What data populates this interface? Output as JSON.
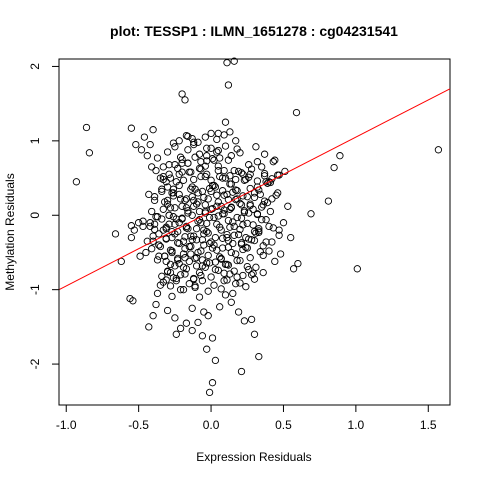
{
  "chart_data": {
    "type": "scatter",
    "title": "plot: TESSP1 : ILMN_1651278 : cg04231541",
    "xlabel": "Expression Residuals",
    "ylabel": "Methylation Residuals",
    "xlim": [
      -1.05,
      1.65
    ],
    "ylim": [
      -2.55,
      2.1
    ],
    "xticks": [
      -1.0,
      -0.5,
      0.0,
      0.5,
      1.0,
      1.5
    ],
    "xtick_labels": [
      "-1.0",
      "-0.5",
      "0.0",
      "0.5",
      "1.0",
      "1.5"
    ],
    "yticks": [
      -2,
      -1,
      0,
      1,
      2
    ],
    "ytick_labels": [
      "-2",
      "-1",
      "0",
      "1",
      "2"
    ],
    "grid": false,
    "marker": "open-circle",
    "fit_line": {
      "intercept": 0.05,
      "slope": 1.0,
      "color": "#ff0000"
    },
    "point_color": "#000000",
    "x": [
      -0.93,
      -0.86,
      -0.84,
      -0.55,
      -0.4,
      -0.33,
      -0.52,
      -0.48,
      -0.2,
      -0.18,
      0.11,
      0.16,
      0.12,
      0.1,
      0.05,
      0.59,
      1.57,
      0.89,
      0.85,
      0.81,
      0.69,
      0.6,
      0.57,
      0.55,
      0.5,
      1.01,
      0.53,
      0.4,
      0.44,
      0.37,
      0.32,
      0.27,
      0.2,
      0.16,
      0.3,
      0.36,
      -0.56,
      -0.54,
      -0.62,
      -0.66,
      -0.49,
      -0.5,
      -0.4,
      -0.43,
      -0.38,
      -0.37,
      -0.35,
      -0.31,
      -0.3,
      -0.25,
      -0.27,
      -0.21,
      -0.24,
      -0.21,
      -0.13,
      -0.11,
      -0.08,
      -0.03,
      0.03,
      -0.01,
      0.01,
      0.21,
      0.28,
      0.3,
      0.33,
      -0.06,
      -0.02,
      -0.09,
      -0.05,
      -0.13,
      -0.17,
      -0.24,
      -0.28,
      0.01,
      0.06,
      0.1,
      0.14,
      0.19,
      0.23,
      -0.42,
      -0.44,
      -0.46,
      -0.41,
      -0.37,
      -0.33,
      -0.29,
      -0.2,
      -0.16,
      -0.12,
      -0.07,
      -0.03,
      0.0,
      0.04,
      0.08,
      0.12,
      0.17,
      0.22,
      0.26,
      0.31,
      0.35,
      0.39,
      0.43,
      0.47,
      -0.35,
      -0.3,
      -0.27,
      -0.23,
      -0.19,
      -0.15,
      -0.11,
      -0.07,
      -0.04,
      0.02,
      0.06,
      0.09,
      0.13,
      0.18,
      0.24,
      0.27,
      0.34,
      0.38,
      0.42,
      0.46,
      -0.32,
      -0.28,
      -0.26,
      -0.22,
      -0.18,
      -0.14,
      -0.1,
      -0.06,
      -0.02,
      0.03,
      0.07,
      0.11,
      0.15,
      0.2,
      0.25,
      0.29,
      0.33,
      0.37,
      0.41,
      0.45,
      -0.29,
      -0.24,
      -0.2,
      -0.16,
      -0.12,
      -0.08,
      -0.04,
      0.0,
      0.05,
      0.09,
      0.14,
      0.18,
      0.23,
      0.27,
      0.32,
      -0.39,
      -0.34,
      -0.31,
      -0.26,
      -0.22,
      -0.17,
      -0.13,
      -0.09,
      -0.05,
      -0.01,
      0.04,
      0.08,
      0.12,
      0.16,
      0.21,
      0.25,
      0.3,
      0.35,
      -0.36,
      -0.31,
      -0.27,
      -0.23,
      -0.19,
      -0.14,
      -0.1,
      -0.06,
      -0.02,
      0.02,
      0.07,
      0.11,
      0.15,
      0.19,
      0.24,
      0.28,
      0.33,
      0.38,
      -0.45,
      -0.41,
      -0.36,
      -0.32,
      -0.28,
      -0.23,
      -0.19,
      -0.15,
      -0.11,
      -0.07,
      -0.03,
      0.01,
      0.06,
      0.1,
      0.14,
      0.18,
      0.22,
      0.27,
      0.31,
      0.36,
      0.4,
      0.44,
      0.48,
      -0.3,
      -0.25,
      -0.21,
      -0.17,
      -0.12,
      -0.08,
      -0.04,
      0.0,
      0.05,
      0.09,
      0.13,
      0.17,
      0.22,
      0.26,
      0.3,
      -0.38,
      -0.33,
      -0.29,
      -0.24,
      -0.2,
      -0.16,
      -0.12,
      -0.08,
      -0.03,
      0.01,
      0.05,
      0.1,
      0.14,
      0.19,
      0.23,
      0.28,
      0.32,
      0.37,
      0.41,
      -0.43,
      -0.39,
      -0.34,
      -0.3,
      -0.26,
      -0.21,
      -0.17,
      -0.13,
      -0.09,
      -0.04,
      0.0,
      0.04,
      0.09,
      0.13,
      0.17,
      0.21,
      0.26,
      0.3,
      0.35,
      0.39,
      -0.47,
      -0.42,
      -0.38,
      -0.33,
      -0.29,
      -0.25,
      -0.2,
      -0.16,
      -0.12,
      -0.07,
      -0.03,
      0.02,
      0.06,
      0.11,
      0.15,
      0.2,
      0.24,
      0.29,
      0.33,
      0.38,
      0.43,
      0.47,
      -0.4,
      -0.35,
      -0.31,
      -0.27,
      -0.22,
      -0.18,
      -0.13,
      -0.09,
      -0.05,
      0.0,
      0.04,
      0.08,
      0.12,
      0.17,
      0.21,
      0.25,
      0.3,
      0.34,
      -0.37,
      -0.32,
      -0.28,
      -0.23,
      -0.19,
      -0.15,
      -0.1,
      -0.06,
      -0.01,
      0.03,
      0.07,
      0.12,
      0.16,
      0.2,
      0.25,
      0.29,
      -0.33,
      -0.28,
      -0.24,
      -0.19,
      -0.15,
      -0.11,
      -0.06,
      -0.02,
      0.02,
      0.07,
      0.11,
      0.15,
      0.2,
      0.24,
      -0.3,
      -0.25,
      -0.21,
      -0.16,
      -0.12,
      -0.08,
      -0.03,
      0.01,
      0.05,
      0.1,
      0.14,
      0.18,
      -0.26,
      -0.22,
      -0.17,
      -0.13,
      -0.09,
      -0.04,
      0.0,
      0.04,
      0.09,
      0.13,
      -0.44,
      -0.4,
      -0.36,
      -0.31,
      -0.27,
      -0.23,
      -0.18,
      -0.14,
      -0.1,
      -0.05,
      -0.01,
      0.03,
      0.08,
      0.12,
      0.16,
      0.21,
      0.26,
      0.31,
      0.36,
      0.42,
      -0.41,
      -0.37,
      -0.33,
      -0.29,
      -0.25,
      -0.2,
      -0.16,
      -0.12,
      -0.08,
      -0.04,
      0.01,
      0.05,
      0.09,
      0.14,
      0.18,
      0.23,
      0.27,
      0.32,
      -0.39,
      -0.34,
      -0.3,
      -0.26,
      -0.22,
      -0.17,
      -0.13,
      -0.09,
      -0.05,
      -0.01,
      0.04,
      0.08,
      0.12,
      0.17,
      0.22,
      -0.36,
      -0.31,
      -0.27,
      -0.22,
      -0.18,
      -0.14,
      -0.1,
      -0.06,
      -0.02,
      0.03,
      0.07,
      0.11,
      -0.25,
      -0.2,
      -0.16,
      -0.11,
      -0.07,
      -0.03,
      0.02,
      0.06,
      -0.42,
      -0.47,
      -0.53,
      -0.55,
      -0.31,
      -0.28,
      -0.22,
      -0.14,
      -0.04,
      0.0,
      0.05,
      0.13,
      0.17,
      0.21,
      0.26,
      0.32,
      0.37,
      0.42,
      0.46,
      0.51,
      -0.34,
      -0.3,
      -0.26,
      -0.18,
      -0.12,
      -0.07,
      0.09,
      0.18,
      0.28,
      0.36,
      -0.55,
      -0.39,
      -0.25,
      -0.17,
      -0.03,
      0.13,
      0.22,
      0.33,
      0.4,
      0.47
    ],
    "y": [
      0.45,
      1.18,
      0.84,
      1.17,
      1.15,
      0.65,
      0.95,
      0.88,
      1.63,
      1.55,
      2.05,
      2.07,
      1.75,
      1.25,
      1.1,
      1.38,
      0.88,
      0.8,
      0.64,
      0.19,
      0.02,
      -0.65,
      -0.72,
      -0.3,
      -0.1,
      -0.72,
      0.12,
      0.45,
      0.74,
      0.82,
      0.72,
      0.55,
      0.84,
      0.6,
      0.3,
      0.14,
      -1.12,
      -1.15,
      -0.62,
      -0.25,
      -0.55,
      -0.1,
      -1.35,
      -1.5,
      -1.2,
      -1.05,
      -0.94,
      -0.87,
      -1.28,
      -1.38,
      -1.09,
      -1.52,
      -1.6,
      -1.0,
      -1.25,
      -0.95,
      -1.1,
      -1.8,
      -1.95,
      -2.38,
      -2.25,
      -2.1,
      -1.4,
      -1.6,
      -1.9,
      -1.62,
      -1.35,
      -1.44,
      -1.3,
      -1.55,
      -1.45,
      -0.88,
      -0.77,
      -1.65,
      -1.23,
      -1.07,
      -1.17,
      -1.3,
      -1.42,
      0.95,
      0.8,
      1.05,
      0.65,
      0.77,
      0.48,
      0.55,
      0.7,
      1.06,
      0.98,
      0.62,
      0.73,
      0.9,
      0.85,
      0.5,
      0.74,
      1.0,
      0.55,
      0.68,
      0.92,
      0.65,
      0.43,
      0.72,
      0.54,
      0.5,
      0.38,
      0.3,
      0.63,
      0.47,
      0.58,
      0.35,
      0.52,
      0.66,
      0.4,
      0.52,
      0.6,
      0.42,
      0.33,
      0.48,
      0.36,
      0.28,
      0.45,
      0.22,
      0.3,
      0.18,
      0.1,
      0.26,
      0.4,
      0.2,
      0.35,
      0.15,
      0.32,
      0.22,
      0.38,
      0.12,
      0.28,
      0.31,
      0.16,
      0.25,
      0.08,
      0.34,
      0.19,
      0.05,
      0.27,
      0.0,
      -0.05,
      0.12,
      0.03,
      0.2,
      0.05,
      0.14,
      0.08,
      0.18,
      0.02,
      0.1,
      0.22,
      0.06,
      0.15,
      0.01,
      -0.12,
      -0.05,
      -0.18,
      -0.02,
      -0.1,
      -0.15,
      0.0,
      -0.08,
      -0.2,
      -0.03,
      -0.12,
      0.02,
      -0.07,
      -0.15,
      -0.04,
      -0.11,
      -0.22,
      -0.06,
      -0.25,
      -0.16,
      -0.3,
      -0.22,
      -0.35,
      -0.28,
      -0.18,
      -0.33,
      -0.24,
      -0.4,
      -0.2,
      -0.3,
      -0.38,
      -0.26,
      -0.43,
      -0.33,
      -0.21,
      -0.36,
      -0.5,
      -0.45,
      -0.4,
      -0.55,
      -0.47,
      -0.6,
      -0.52,
      -0.42,
      -0.58,
      -0.48,
      -0.64,
      -0.44,
      -0.56,
      -0.66,
      -0.5,
      -0.61,
      -0.46,
      -0.57,
      -0.7,
      -0.54,
      -0.48,
      -0.62,
      -0.52,
      -0.75,
      -0.68,
      -0.8,
      -0.72,
      -0.85,
      -0.77,
      -0.7,
      -0.83,
      -0.74,
      -0.88,
      -0.79,
      -0.92,
      -0.81,
      -0.73,
      -0.86,
      0.6,
      0.52,
      0.68,
      0.45,
      0.58,
      0.7,
      0.48,
      0.63,
      0.55,
      0.4,
      0.66,
      0.5,
      0.42,
      0.59,
      0.47,
      0.62,
      0.38,
      0.53,
      0.44,
      0.28,
      0.2,
      0.35,
      0.15,
      0.3,
      0.22,
      0.1,
      0.25,
      0.18,
      0.05,
      0.32,
      0.12,
      0.27,
      0.08,
      0.21,
      0.14,
      0.03,
      0.24,
      0.11,
      0.17,
      -0.08,
      -0.15,
      -0.02,
      -0.2,
      -0.12,
      -0.25,
      -0.05,
      -0.18,
      -0.28,
      -0.1,
      -0.22,
      -0.03,
      -0.16,
      -0.26,
      -0.09,
      -0.19,
      -0.3,
      -0.13,
      -0.23,
      -0.06,
      -0.17,
      -0.27,
      -0.35,
      -0.42,
      -0.32,
      -0.48,
      -0.38,
      -0.45,
      -0.33,
      -0.5,
      -0.4,
      -0.36,
      -0.47,
      -0.31,
      -0.43,
      -0.52,
      -0.37,
      -0.44,
      -0.34,
      -0.49,
      -0.6,
      -0.55,
      -0.66,
      -0.58,
      -0.7,
      -0.62,
      -0.57,
      -0.68,
      -0.64,
      -0.73,
      -0.59,
      -0.67,
      -0.75,
      -0.61,
      -0.69,
      -0.78,
      -0.9,
      -0.95,
      -0.85,
      -1.0,
      -0.92,
      -0.97,
      -0.88,
      -1.02,
      -0.94,
      -0.99,
      -0.87,
      -1.05,
      -0.91,
      -0.96,
      0.85,
      0.92,
      0.78,
      0.88,
      0.95,
      0.82,
      0.9,
      0.76,
      0.87,
      0.93,
      0.8,
      0.89,
      0.97,
      1.0,
      1.07,
      1.03,
      0.98,
      1.05,
      1.1,
      1.02,
      1.08,
      1.12,
      -0.35,
      -0.28,
      -0.4,
      -0.31,
      -0.22,
      -0.37,
      -0.29,
      -0.42,
      -0.33,
      -0.25,
      -0.38,
      -0.3,
      -0.44,
      -0.34,
      -0.27,
      -0.39,
      -0.32,
      -0.24,
      -0.41,
      -0.36,
      0.05,
      -0.02,
      0.08,
      0.0,
      0.1,
      -0.04,
      0.06,
      0.12,
      -0.06,
      0.03,
      0.09,
      -0.01,
      0.07,
      0.11,
      -0.03,
      0.04,
      0.13,
      0.02,
      0.25,
      0.32,
      0.2,
      0.35,
      0.28,
      0.22,
      0.38,
      0.3,
      0.24,
      0.36,
      0.27,
      0.33,
      0.21,
      0.34,
      0.26,
      -0.55,
      -0.62,
      -0.5,
      -0.65,
      -0.57,
      -0.52,
      -0.68,
      -0.6,
      -0.54,
      -0.63,
      -0.58,
      -0.66,
      0.68,
      0.75,
      0.7,
      0.78,
      0.72,
      0.8,
      0.74,
      0.77,
      -0.1,
      -0.15,
      -0.2,
      -0.3,
      0.45,
      0.5,
      0.55,
      0.58,
      0.52,
      0.47,
      0.6,
      0.53,
      0.48,
      0.57,
      0.51,
      0.46,
      0.56,
      0.49,
      0.54,
      0.59,
      -0.82,
      -0.76,
      -0.84,
      -0.79,
      -0.86,
      -0.81,
      -0.78,
      -0.83,
      -0.8,
      -0.77,
      -0.14,
      -0.19,
      -0.12,
      -0.17,
      -0.11,
      -0.16,
      -0.13,
      -0.18,
      -0.15,
      -0.2
    ]
  }
}
